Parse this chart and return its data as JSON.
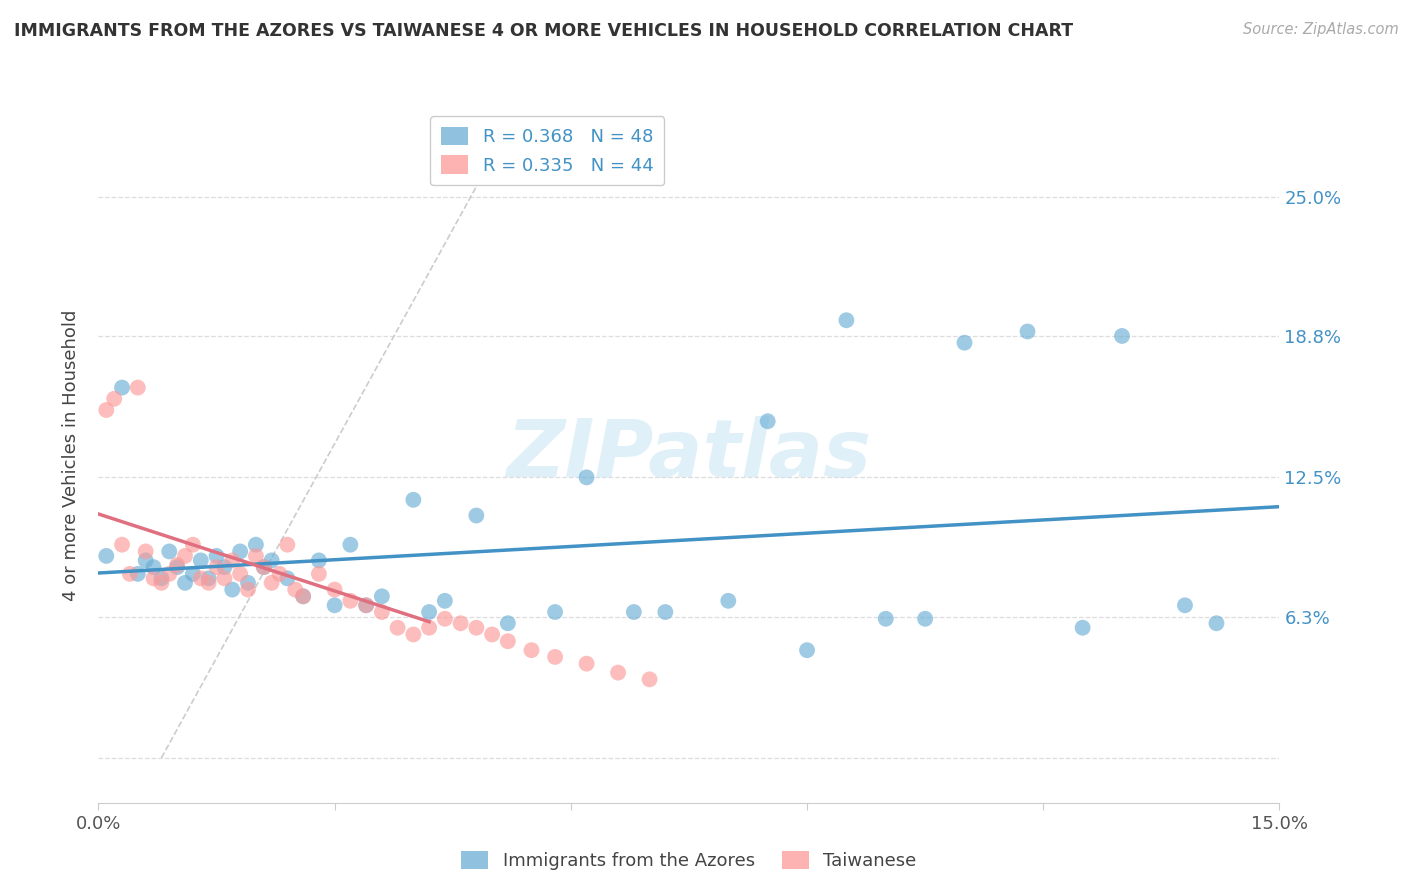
{
  "title": "IMMIGRANTS FROM THE AZORES VS TAIWANESE 4 OR MORE VEHICLES IN HOUSEHOLD CORRELATION CHART",
  "source": "Source: ZipAtlas.com",
  "ylabel": "4 or more Vehicles in Household",
  "xlim": [
    0.0,
    0.15
  ],
  "ylim": [
    -0.02,
    0.29
  ],
  "ytick_positions": [
    0.0,
    0.063,
    0.125,
    0.188,
    0.25
  ],
  "ytick_labels": [
    "",
    "6.3%",
    "12.5%",
    "18.8%",
    "25.0%"
  ],
  "xtick_positions": [
    0.0,
    0.03,
    0.06,
    0.09,
    0.12,
    0.15
  ],
  "xtick_labels": [
    "0.0%",
    "",
    "",
    "",
    "",
    "15.0%"
  ],
  "legend_top_labels": [
    "R = 0.368   N = 48",
    "R = 0.335   N = 44"
  ],
  "legend_bottom_labels": [
    "Immigrants from the Azores",
    "Taiwanese"
  ],
  "watermark": "ZIPatlas",
  "blue_color": "#6baed6",
  "pink_color": "#fb9a99",
  "blue_line_color": "#4292c6",
  "pink_line_color": "#e07080",
  "diagonal_color": "#cccccc",
  "background_color": "#ffffff",
  "grid_color": "#dddddd",
  "blue_x": [
    0.001,
    0.003,
    0.005,
    0.006,
    0.007,
    0.008,
    0.009,
    0.01,
    0.011,
    0.012,
    0.013,
    0.014,
    0.015,
    0.016,
    0.017,
    0.018,
    0.019,
    0.02,
    0.021,
    0.022,
    0.024,
    0.026,
    0.028,
    0.03,
    0.032,
    0.034,
    0.036,
    0.04,
    0.042,
    0.044,
    0.048,
    0.052,
    0.058,
    0.062,
    0.068,
    0.072,
    0.08,
    0.085,
    0.09,
    0.095,
    0.1,
    0.105,
    0.11,
    0.118,
    0.125,
    0.13,
    0.138,
    0.142
  ],
  "blue_y": [
    0.09,
    0.165,
    0.082,
    0.088,
    0.085,
    0.08,
    0.092,
    0.085,
    0.078,
    0.082,
    0.088,
    0.08,
    0.09,
    0.085,
    0.075,
    0.092,
    0.078,
    0.095,
    0.085,
    0.088,
    0.08,
    0.072,
    0.088,
    0.068,
    0.095,
    0.068,
    0.072,
    0.115,
    0.065,
    0.07,
    0.108,
    0.06,
    0.065,
    0.125,
    0.065,
    0.065,
    0.07,
    0.15,
    0.048,
    0.195,
    0.062,
    0.062,
    0.185,
    0.19,
    0.058,
    0.188,
    0.068,
    0.06
  ],
  "pink_x": [
    0.001,
    0.002,
    0.003,
    0.004,
    0.005,
    0.006,
    0.007,
    0.008,
    0.009,
    0.01,
    0.011,
    0.012,
    0.013,
    0.014,
    0.015,
    0.016,
    0.017,
    0.018,
    0.019,
    0.02,
    0.021,
    0.022,
    0.023,
    0.024,
    0.025,
    0.026,
    0.028,
    0.03,
    0.032,
    0.034,
    0.036,
    0.038,
    0.04,
    0.042,
    0.044,
    0.046,
    0.048,
    0.05,
    0.052,
    0.055,
    0.058,
    0.062,
    0.066,
    0.07
  ],
  "pink_y": [
    0.155,
    0.16,
    0.095,
    0.082,
    0.165,
    0.092,
    0.08,
    0.078,
    0.082,
    0.086,
    0.09,
    0.095,
    0.08,
    0.078,
    0.085,
    0.08,
    0.088,
    0.082,
    0.075,
    0.09,
    0.085,
    0.078,
    0.082,
    0.095,
    0.075,
    0.072,
    0.082,
    0.075,
    0.07,
    0.068,
    0.065,
    0.058,
    0.055,
    0.058,
    0.062,
    0.06,
    0.058,
    0.055,
    0.052,
    0.048,
    0.045,
    0.042,
    0.038,
    0.035
  ]
}
